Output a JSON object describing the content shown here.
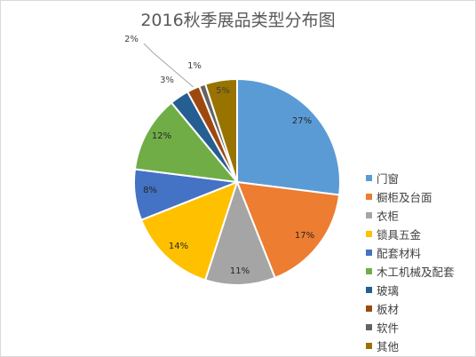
{
  "chart_data": {
    "type": "pie",
    "title": "2016秋季展品类型分布图",
    "categories": [
      "门窗",
      "橱柜及台面",
      "衣柜",
      "锁具五金",
      "配套材料",
      "木工机械及配套",
      "玻璃",
      "板材",
      "软件",
      "其他"
    ],
    "values": [
      27,
      17,
      11,
      14,
      8,
      12,
      3,
      2,
      1,
      5
    ],
    "labels": [
      "27%",
      "17%",
      "11%",
      "14%",
      "8%",
      "12%",
      "3%",
      "2%",
      "1%",
      "5%"
    ],
    "colors": [
      "#5b9bd5",
      "#ed7d31",
      "#a5a5a5",
      "#ffc000",
      "#4472c4",
      "#70ad47",
      "#255e91",
      "#9e480e",
      "#636363",
      "#997300"
    ],
    "legend_position": "right"
  }
}
